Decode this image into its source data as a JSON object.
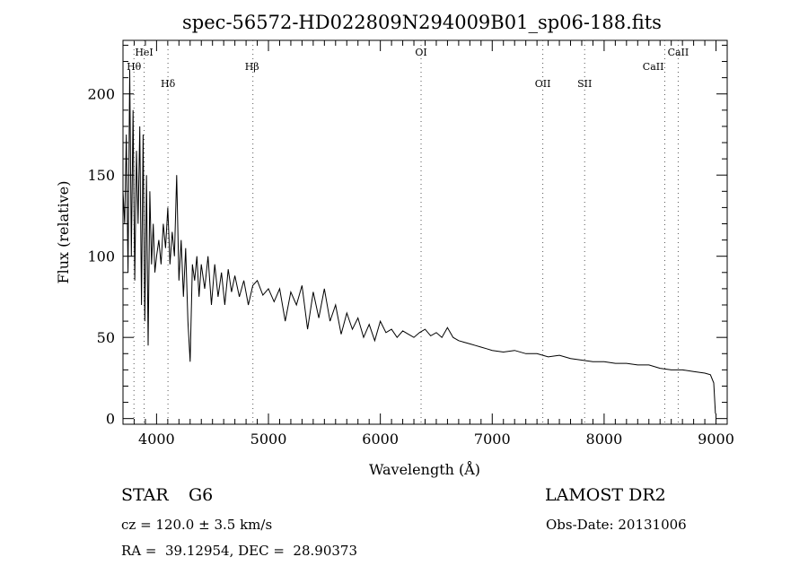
{
  "chart_data": {
    "type": "line",
    "title": "spec-56572-HD022809N294009B01_sp06-188.fits",
    "xlabel": "Wavelength (Å)",
    "ylabel": "Flux (relative)",
    "xlim": [
      3700,
      9100
    ],
    "ylim": [
      -3.5,
      233
    ],
    "xticks": [
      4000,
      5000,
      6000,
      7000,
      8000,
      9000
    ],
    "yticks": [
      0,
      50,
      100,
      150,
      200
    ],
    "grid": false,
    "lines": [
      {
        "label": "Hθ",
        "wavelength": 3798,
        "row": 2
      },
      {
        "label": "HeI",
        "wavelength": 3889,
        "row": 1
      },
      {
        "label": "Hδ",
        "wavelength": 4102,
        "row": 3
      },
      {
        "label": "Hβ",
        "wavelength": 4861,
        "row": 2
      },
      {
        "label": "OI",
        "wavelength": 6364,
        "row": 1
      },
      {
        "label": "OII",
        "wavelength": 7452,
        "row": 3
      },
      {
        "label": "SII",
        "wavelength": 7826,
        "row": 3
      },
      {
        "label": "CaII",
        "wavelength": 8542,
        "row": 2
      },
      {
        "label": "CaII",
        "wavelength": 8662,
        "row": 1
      }
    ],
    "x": [
      3700,
      3715,
      3730,
      3745,
      3760,
      3775,
      3790,
      3805,
      3820,
      3835,
      3850,
      3865,
      3880,
      3895,
      3910,
      3925,
      3940,
      3955,
      3970,
      3985,
      4000,
      4020,
      4040,
      4060,
      4080,
      4100,
      4120,
      4140,
      4160,
      4180,
      4200,
      4220,
      4240,
      4260,
      4280,
      4300,
      4320,
      4340,
      4360,
      4380,
      4400,
      4430,
      4460,
      4490,
      4520,
      4550,
      4580,
      4610,
      4640,
      4670,
      4700,
      4740,
      4780,
      4820,
      4860,
      4900,
      4950,
      5000,
      5050,
      5100,
      5150,
      5200,
      5250,
      5300,
      5350,
      5400,
      5450,
      5500,
      5550,
      5600,
      5650,
      5700,
      5750,
      5800,
      5850,
      5900,
      5950,
      6000,
      6050,
      6100,
      6150,
      6200,
      6250,
      6300,
      6350,
      6400,
      6450,
      6500,
      6550,
      6600,
      6650,
      6700,
      6750,
      6800,
      6850,
      6900,
      6950,
      7000,
      7100,
      7200,
      7300,
      7400,
      7500,
      7600,
      7700,
      7800,
      7900,
      8000,
      8100,
      8200,
      8300,
      8400,
      8500,
      8600,
      8700,
      8800,
      8900,
      8950,
      8980,
      8995
    ],
    "y": [
      140,
      120,
      175,
      90,
      215,
      100,
      190,
      85,
      165,
      120,
      180,
      70,
      175,
      60,
      150,
      45,
      140,
      95,
      120,
      90,
      100,
      110,
      95,
      120,
      105,
      130,
      95,
      115,
      100,
      150,
      85,
      110,
      75,
      105,
      60,
      35,
      95,
      85,
      100,
      75,
      95,
      80,
      100,
      70,
      95,
      75,
      90,
      70,
      92,
      78,
      88,
      75,
      85,
      70,
      82,
      85,
      76,
      80,
      72,
      80,
      60,
      78,
      70,
      82,
      55,
      78,
      62,
      80,
      60,
      70,
      52,
      65,
      55,
      62,
      50,
      58,
      48,
      60,
      53,
      55,
      50,
      54,
      52,
      50,
      53,
      55,
      51,
      53,
      50,
      56,
      50,
      48,
      47,
      46,
      45,
      44,
      43,
      42,
      41,
      42,
      40,
      40,
      38,
      39,
      37,
      36,
      35,
      35,
      34,
      34,
      33,
      33,
      31,
      30,
      30,
      29,
      28,
      27,
      22,
      3
    ]
  },
  "info": {
    "object_type": "STAR",
    "subclass": "G6",
    "survey": "LAMOST DR2",
    "redshift": "cz = 120.0 ± 3.5 km/s",
    "obs_date": "Obs-Date: 20131006",
    "coords": "RA =  39.12954, DEC =  28.90373"
  }
}
